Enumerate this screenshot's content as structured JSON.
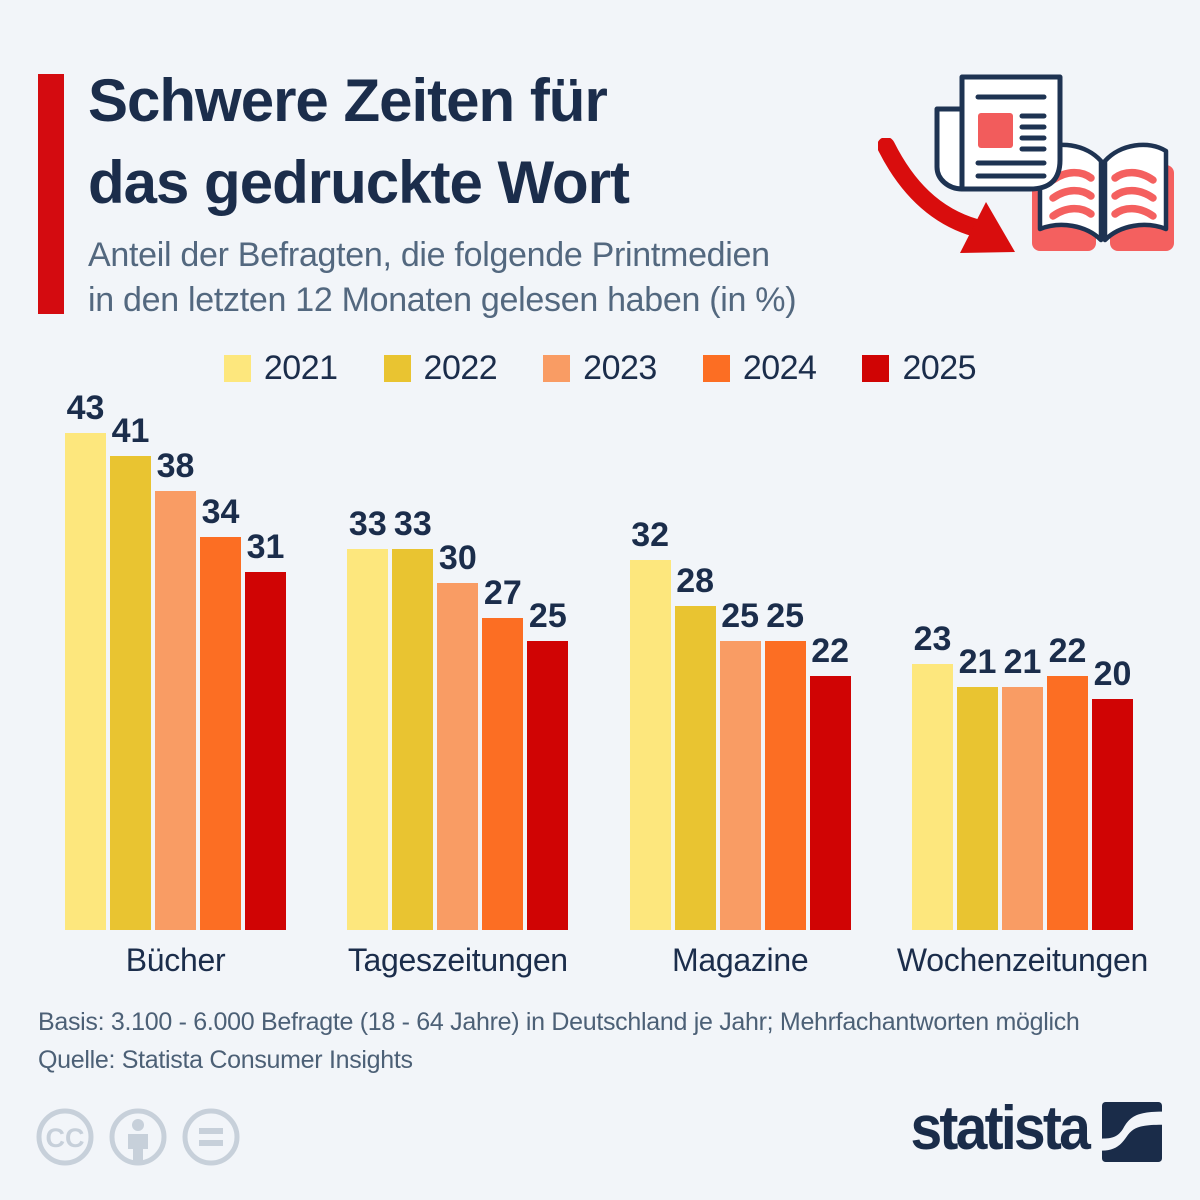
{
  "header": {
    "title_line1": "Schwere Zeiten für",
    "title_line2": "das gedruckte Wort",
    "subtitle_line1": "Anteil der Befragten, die folgende Printmedien",
    "subtitle_line2": "in den letzten 12 Monaten gelesen haben (in %)"
  },
  "colors": {
    "background": "#f2f5f9",
    "navy": "#1b2d4b",
    "subtitle_gray": "#53687f",
    "footer_gray": "#4c6076",
    "accent_red": "#d40b10",
    "icon_salmon": "#f4605f",
    "cc_gray": "#c7d0da",
    "brand_navy": "#1a2c49"
  },
  "chart_data": {
    "type": "bar",
    "title": "Schwere Zeiten für das gedruckte Wort",
    "subtitle": "Anteil der Befragten, die folgende Printmedien in den letzten 12 Monaten gelesen haben (in %)",
    "categories": [
      "Bücher",
      "Tageszeitungen",
      "Magazine",
      "Wochenzeitungen"
    ],
    "series": [
      {
        "name": "2021",
        "color": "#fde77d",
        "values": [
          43,
          33,
          32,
          23
        ]
      },
      {
        "name": "2022",
        "color": "#e9c431",
        "values": [
          41,
          33,
          28,
          21
        ]
      },
      {
        "name": "2023",
        "color": "#f99c64",
        "values": [
          38,
          30,
          25,
          21
        ]
      },
      {
        "name": "2024",
        "color": "#fc6e23",
        "values": [
          34,
          27,
          25,
          22
        ]
      },
      {
        "name": "2025",
        "color": "#d00404",
        "values": [
          31,
          25,
          22,
          20
        ]
      }
    ],
    "ylim": [
      0,
      43
    ],
    "unit": "%",
    "value_labels": true,
    "grid": false,
    "legend_position": "top"
  },
  "icons": {
    "top_right": [
      "downward-trend-arrow-icon",
      "newspaper-icon",
      "open-book-icon"
    ],
    "bottom_left": [
      "cc-icon",
      "cc-by-person-icon",
      "cc-nd-equals-icon"
    ]
  },
  "footer": {
    "basis": "Basis: 3.100 - 6.000 Befragte (18 - 64 Jahre) in Deutschland je Jahr; Mehrfachantworten möglich",
    "source": "Quelle: Statista Consumer Insights"
  },
  "branding": {
    "logo_text": "statista"
  }
}
